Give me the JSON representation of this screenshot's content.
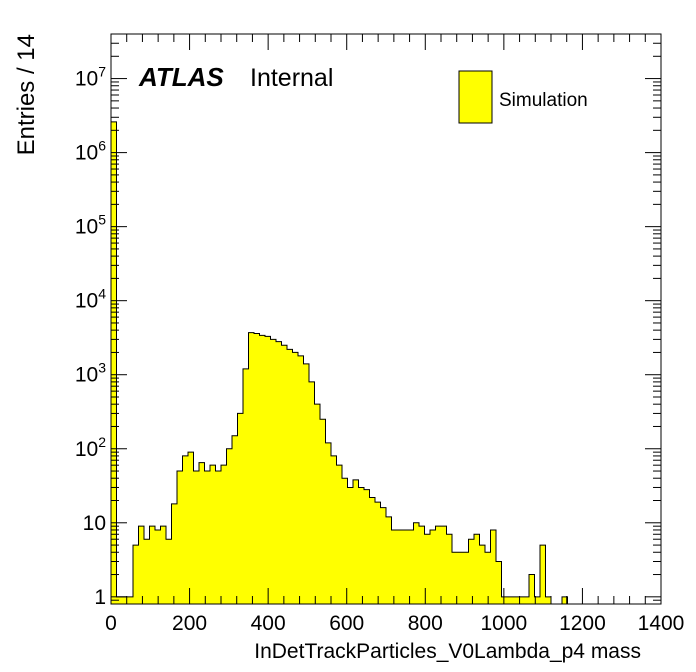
{
  "chart_data": {
    "type": "bar",
    "subtype": "histogram",
    "xlabel": "InDetTrackParticles_V0Lambda_p4 mass",
    "ylabel": "Entries / 14",
    "xlim": [
      0,
      1400
    ],
    "ylim": [
      0.8,
      40000000
    ],
    "yscale": "log",
    "bin_width": 14,
    "x_ticks": [
      "0",
      "200",
      "400",
      "600",
      "800",
      "1000",
      "1200",
      "1400"
    ],
    "y_ticks": [
      {
        "value": 1,
        "label": "1",
        "sup": ""
      },
      {
        "value": 10,
        "label": "10",
        "sup": ""
      },
      {
        "value": 100,
        "label": "10",
        "sup": "2"
      },
      {
        "value": 1000,
        "label": "10",
        "sup": "3"
      },
      {
        "value": 10000,
        "label": "10",
        "sup": "4"
      },
      {
        "value": 100000,
        "label": "10",
        "sup": "5"
      },
      {
        "value": 1000000,
        "label": "10",
        "sup": "6"
      },
      {
        "value": 10000000,
        "label": "10",
        "sup": "7"
      }
    ],
    "annotation": {
      "bold": "ATLAS",
      "normal": "Internal"
    },
    "fill_color": "#ffff00",
    "series": [
      {
        "name": "Simulation",
        "values": [
          2600000,
          1,
          1,
          1,
          5,
          9,
          6,
          9,
          8,
          9,
          6,
          18,
          50,
          80,
          90,
          50,
          65,
          50,
          60,
          50,
          60,
          100,
          150,
          300,
          1200,
          3700,
          3600,
          3400,
          3300,
          3000,
          2800,
          2500,
          2200,
          2000,
          1800,
          1400,
          800,
          400,
          250,
          120,
          80,
          60,
          40,
          30,
          38,
          30,
          28,
          22,
          19,
          16,
          12,
          8,
          8,
          8,
          8,
          10,
          9,
          7,
          8,
          9,
          9,
          7,
          4,
          4,
          4,
          6,
          7,
          5,
          4,
          8,
          3,
          1,
          1,
          1,
          1,
          1,
          2,
          1,
          5,
          1,
          0.5,
          0.5,
          1,
          0.5,
          0.5,
          0.5,
          0.5,
          0.5,
          0.5,
          0.5,
          0.5,
          0.5,
          0.5,
          0.5,
          0.5,
          0.5,
          0.5,
          0.5,
          0.5,
          0.5
        ]
      }
    ]
  }
}
